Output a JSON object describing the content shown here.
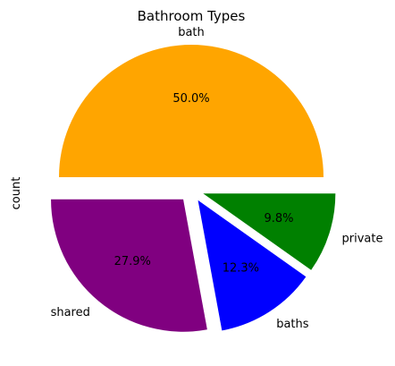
{
  "chart_data": {
    "type": "pie",
    "title": "Bathroom Types",
    "ylabel": "count",
    "categories": [
      "bath",
      "shared",
      "baths",
      "private"
    ],
    "values": [
      50.0,
      27.9,
      12.3,
      9.8
    ],
    "value_labels": [
      "50.0%",
      "27.9%",
      "12.3%",
      "9.8%"
    ],
    "colors": [
      "#FFA500",
      "#800080",
      "#0000FF",
      "#008000"
    ],
    "exploded": true,
    "start_angle": 0,
    "direction": "counterclockwise",
    "legend": false
  }
}
